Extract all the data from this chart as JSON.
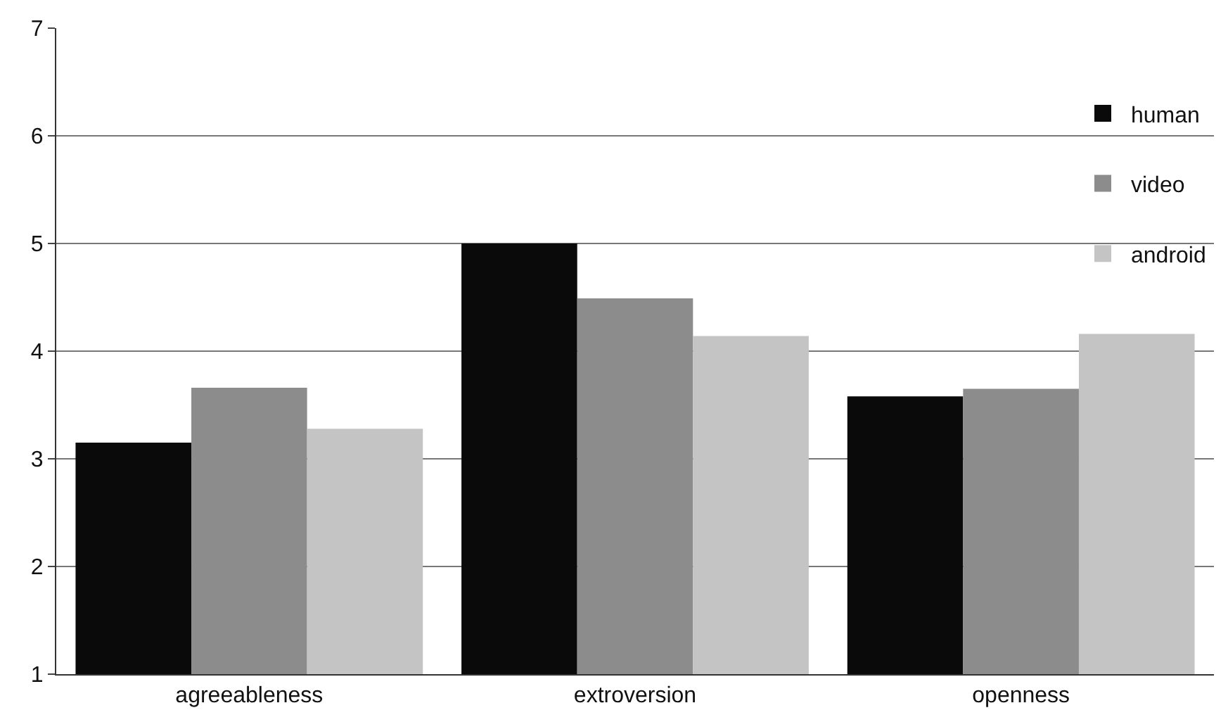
{
  "chart_data": {
    "type": "bar",
    "categories": [
      "agreeableness",
      "extroversion",
      "openness"
    ],
    "series": [
      {
        "name": "human",
        "color": "#0a0a0a",
        "values": [
          3.15,
          5.0,
          3.58
        ]
      },
      {
        "name": "video",
        "color": "#8c8c8c",
        "values": [
          3.66,
          4.49,
          3.65
        ]
      },
      {
        "name": "android",
        "color": "#c4c4c4",
        "values": [
          3.28,
          4.14,
          4.16
        ]
      }
    ],
    "ylim": [
      1,
      7
    ],
    "yticks": [
      1,
      2,
      3,
      4,
      5,
      6,
      7
    ],
    "grid": "y",
    "legend": "top right"
  }
}
